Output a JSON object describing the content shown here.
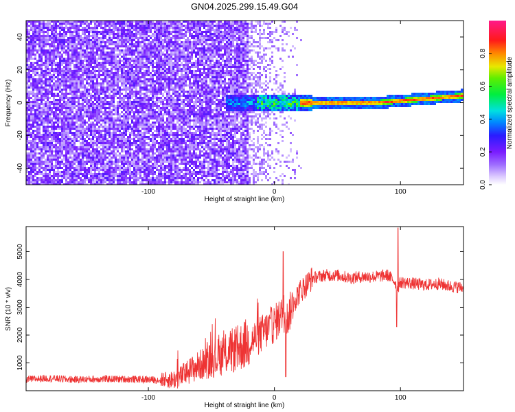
{
  "title": "GN04.2025.299.15.49.G04",
  "chart_data": [
    {
      "type": "heatmap",
      "name": "Frequency spectrogram",
      "xlabel": "Height of straight line (km)",
      "ylabel": "Frequency (Hz)",
      "xlim": [
        -197,
        150
      ],
      "ylim": [
        -50,
        50
      ],
      "xticks": [
        -100,
        0,
        100
      ],
      "yticks": [
        -40,
        -20,
        0,
        20,
        40
      ],
      "colorbar": {
        "label": "Normalized spectral amplitude",
        "range": [
          0.0,
          1.0
        ],
        "ticks": [
          "0.0",
          "0.2",
          "0.4",
          "0.6",
          "0.8"
        ],
        "colormap": "purple-blue-cyan-green-yellow-red-magenta"
      },
      "features": [
        {
          "region": "x from -197 to -20 km",
          "description": "broadband low amplitude noise (0.1-0.3) across all frequencies"
        },
        {
          "region": "x from -20 to 20 km",
          "description": "sparse faint noise"
        },
        {
          "region": "x from -35 to 150 km",
          "description": "narrow signal band near 0 Hz, high amplitude (~0.9), drifting to ~5 Hz near x = 150 km"
        }
      ]
    },
    {
      "type": "line",
      "name": "SNR profile",
      "xlabel": "Height of straight line (km)",
      "ylabel": "SNR (10 * v/v)",
      "xlim": [
        -197,
        150
      ],
      "ylim": [
        0,
        5900
      ],
      "xticks": [
        -100,
        0,
        100
      ],
      "yticks": [
        1000,
        2000,
        3000,
        4000,
        5000
      ],
      "color": "#ee3333",
      "series": [
        {
          "name": "SNR",
          "x": [
            -197,
            -180,
            -160,
            -140,
            -120,
            -100,
            -90,
            -80,
            -75,
            -70,
            -60,
            -50,
            -40,
            -30,
            -20,
            -10,
            0,
            5,
            10,
            15,
            20,
            25,
            30,
            40,
            50,
            60,
            70,
            80,
            90,
            95,
            98,
            100,
            110,
            120,
            130,
            140,
            150
          ],
          "y": [
            400,
            450,
            400,
            420,
            420,
            400,
            380,
            400,
            480,
            650,
            900,
            1100,
            1300,
            1500,
            1750,
            2050,
            2400,
            2700,
            2550,
            3200,
            3550,
            3800,
            4050,
            4150,
            4150,
            4050,
            4100,
            4100,
            4150,
            3950,
            3700,
            3900,
            3850,
            3800,
            3850,
            3750,
            3700
          ]
        }
      ],
      "spikes": [
        {
          "x": 7,
          "y": 5000
        },
        {
          "x": 9,
          "y": 500
        },
        {
          "x": 98,
          "y": 5850
        },
        {
          "x": 97,
          "y": 2300
        }
      ]
    }
  ]
}
